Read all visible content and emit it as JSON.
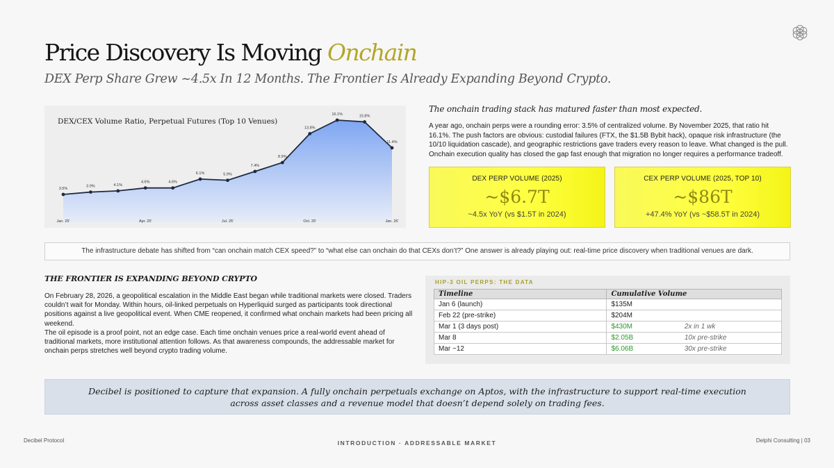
{
  "header": {
    "title_main": "Price Discovery Is Moving ",
    "title_accent": "Onchain",
    "subtitle": "DEX Perp Share Grew ~4.5x In 12 Months. The Frontier Is Already Expanding Beyond Crypto."
  },
  "chart_data": {
    "type": "area",
    "title": "DEX/CEX Volume Ratio, Perpetual Futures (Top 10 Venues)",
    "x": [
      "Jan. 25'",
      "",
      "",
      "Apr. 25'",
      "",
      "",
      "Jul. 25'",
      "",
      "",
      "Oct. 25'",
      "",
      "",
      "Jan. 26'"
    ],
    "tick_labels": [
      "Jan. 25'",
      "Apr. 25'",
      "Jul. 25'",
      "Oct. 25'",
      "Jan. 26'"
    ],
    "values": [
      3.5,
      3.9,
      4.1,
      4.6,
      4.6,
      6.1,
      5.9,
      7.4,
      8.9,
      13.8,
      16.1,
      15.8,
      11.4
    ],
    "data_labels": [
      "3.5%",
      "3.9%",
      "4.1%",
      "4.6%",
      "4.6%",
      "6.1%",
      "5.9%",
      "7.4%",
      "8.9%",
      "13.8%",
      "16.1%",
      "15.8%",
      "11.4%"
    ],
    "ylim": [
      0,
      18
    ],
    "grid": false,
    "colors": {
      "line": "#1f2a40",
      "fill_top": "#7fa6f2",
      "fill_bottom": "#e6ecf8"
    }
  },
  "summary": {
    "heading": "The onchain trading stack has matured faster than most expected.",
    "body": "A year ago, onchain perps were a rounding error: 3.5% of centralized volume. By November 2025, that ratio hit 16.1%. The push factors are obvious: custodial failures (FTX, the $1.5B Bybit hack), opaque risk infrastructure (the 10/10 liquidation cascade), and geographic restrictions gave traders every reason to leave. What changed is the pull. Onchain execution quality has closed the gap fast enough that migration no longer requires a performance tradeoff."
  },
  "stats": [
    {
      "label": "DEX PERP VOLUME (2025)",
      "value": "~$6.7T",
      "note": "~4.5x YoY (vs $1.5T in 2024)"
    },
    {
      "label": "CEX PERP VOLUME (2025, TOP 10)",
      "value": "~$86T",
      "note": "+47.4% YoY (vs ~$58.5T in 2024)"
    }
  ],
  "callout": "The infrastructure debate has shifted from “can onchain match CEX speed?” to “what else can onchain do that CEXs don’t?” One answer is already playing out: real-time price discovery when traditional venues are dark.",
  "frontier": {
    "heading": "THE FRONTIER IS EXPANDING BEYOND CRYPTO",
    "para1": "On February 28, 2026, a geopolitical escalation in the Middle East began while traditional markets were closed. Traders couldn’t wait for Monday. Within hours, oil-linked perpetuals on Hyperliquid surged as participants took directional positions against a live geopolitical event. When CME reopened, it confirmed what onchain markets had been pricing all weekend.",
    "para2": "The oil episode is a proof point, not an edge case. Each time onchain venues price a real-world event ahead of traditional markets, more institutional attention follows. As that awareness compounds, the addressable market for onchain perps stretches well beyond crypto trading volume."
  },
  "oil_table": {
    "label": "HIP-3 OIL PERPS: THE DATA",
    "headers": [
      "Timeline",
      "Cumulative Volume"
    ],
    "rows": [
      {
        "timeline": "Jan 6 (launch)",
        "volume": "$135M",
        "note": "",
        "green": false
      },
      {
        "timeline": "Feb 22 (pre-strike)",
        "volume": "$204M",
        "note": "",
        "green": false
      },
      {
        "timeline": "Mar 1 (3 days post)",
        "volume": "$430M",
        "note": "2x in 1 wk",
        "green": true
      },
      {
        "timeline": "Mar 8",
        "volume": "$2.05B",
        "note": "10x pre-strike",
        "green": true
      },
      {
        "timeline": "Mar ~12",
        "volume": "$6.06B",
        "note": "30x pre-strike",
        "green": true
      }
    ]
  },
  "banner": {
    "line1": "Decibel is positioned to capture that expansion. A fully onchain perpetuals exchange on Aptos, with the infrastructure to support real-time execution",
    "line2": "across asset classes and a revenue model that doesn’t depend solely on trading fees."
  },
  "footer": {
    "left": "Decibel Protocol",
    "center": "INTRODUCTION · ADDRESSABLE MARKET",
    "right": "Delphi Consulting  |  03"
  },
  "icons": {
    "logo": "flower-logo-icon"
  }
}
